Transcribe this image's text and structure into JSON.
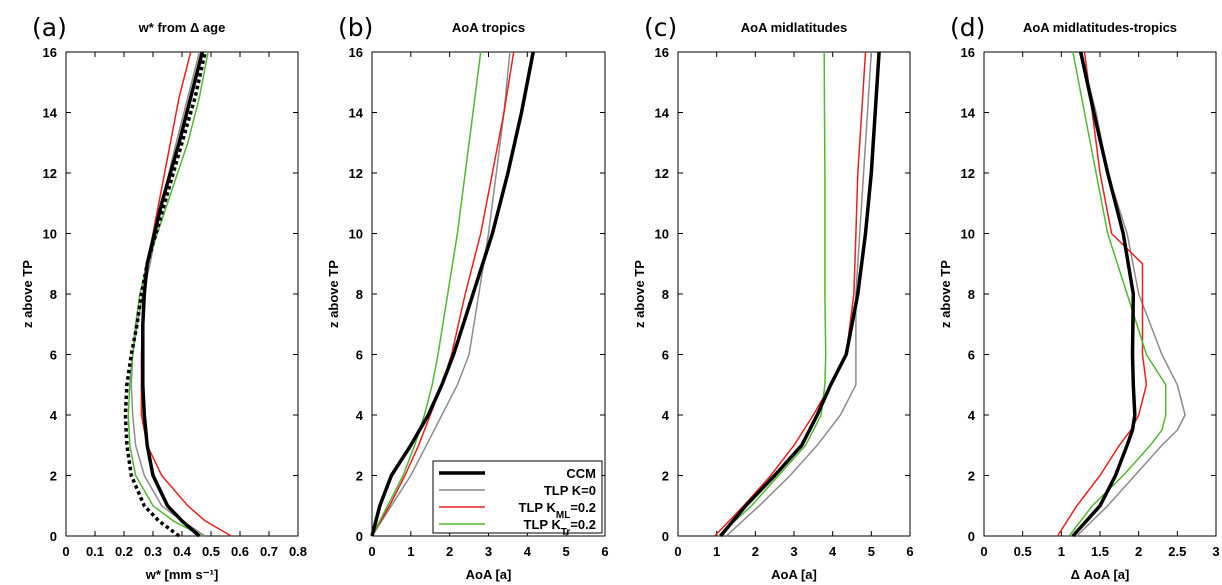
{
  "chart_data": [
    {
      "type": "line",
      "panel_label": "(a)",
      "title": "w* from Δ age",
      "xlabel": "w* [mm s⁻¹]",
      "ylabel": "z above TP",
      "xlim": [
        0,
        0.8
      ],
      "ylim": [
        0,
        16
      ],
      "xticks": [
        "0",
        "0.1",
        "0.2",
        "0.3",
        "0.4",
        "0.5",
        "0.6",
        "0.7",
        "0.8"
      ],
      "yticks": [
        "0",
        "2",
        "4",
        "6",
        "8",
        "10",
        "12",
        "14",
        "16"
      ],
      "series": [
        {
          "key": "grey",
          "color": "#8c8c8c",
          "style": "solid",
          "width": 1.5,
          "x": [
            0.48,
            0.4,
            0.33,
            0.27,
            0.24,
            0.23,
            0.225,
            0.23,
            0.245,
            0.265,
            0.29,
            0.33,
            0.38,
            0.42,
            0.46
          ],
          "y": [
            0,
            0.5,
            1,
            2,
            3,
            4,
            5,
            6,
            7,
            8,
            9,
            11,
            13,
            14.5,
            16
          ]
        },
        {
          "key": "red",
          "color": "#e8201e",
          "style": "solid",
          "width": 1.5,
          "x": [
            0.57,
            0.48,
            0.42,
            0.33,
            0.28,
            0.26,
            0.26,
            0.26,
            0.265,
            0.27,
            0.28,
            0.32,
            0.36,
            0.39,
            0.43
          ],
          "y": [
            0,
            0.5,
            1,
            2,
            3,
            4,
            5,
            6,
            7,
            8,
            9,
            11,
            13,
            14.5,
            16
          ]
        },
        {
          "key": "green",
          "color": "#52b732",
          "style": "solid",
          "width": 1.5,
          "x": [
            0.47,
            0.37,
            0.3,
            0.24,
            0.22,
            0.215,
            0.22,
            0.23,
            0.24,
            0.255,
            0.28,
            0.35,
            0.42,
            0.46,
            0.49
          ],
          "y": [
            0,
            0.5,
            1,
            2,
            3,
            4,
            5,
            6,
            7,
            8,
            9,
            11,
            13,
            14.5,
            16
          ]
        },
        {
          "key": "ccm",
          "color": "#000000",
          "style": "solid",
          "width": 3.5,
          "x": [
            0.46,
            0.4,
            0.35,
            0.3,
            0.28,
            0.27,
            0.265,
            0.265,
            0.265,
            0.27,
            0.28,
            0.33,
            0.39,
            0.43,
            0.47
          ],
          "y": [
            0,
            0.5,
            1,
            2,
            3,
            4,
            5,
            6,
            7,
            8,
            9,
            11,
            13,
            14.5,
            16
          ]
        },
        {
          "key": "dotted",
          "color": "#000000",
          "style": "dotted",
          "width": 3.5,
          "x": [
            0.39,
            0.32,
            0.27,
            0.225,
            0.21,
            0.205,
            0.21,
            0.225,
            0.245,
            0.26,
            0.28,
            0.34,
            0.4,
            0.445,
            0.48
          ],
          "y": [
            0,
            0.5,
            1,
            2,
            3,
            4,
            5,
            6,
            7,
            8,
            9,
            11,
            13,
            14.5,
            16
          ]
        }
      ]
    },
    {
      "type": "line",
      "panel_label": "(b)",
      "title": "AoA tropics",
      "xlabel": "AoA [a]",
      "ylabel": "z above TP",
      "xlim": [
        0,
        6
      ],
      "ylim": [
        0,
        16
      ],
      "xticks": [
        "0",
        "1",
        "2",
        "3",
        "4",
        "5",
        "6"
      ],
      "yticks": [
        "0",
        "2",
        "4",
        "6",
        "8",
        "10",
        "12",
        "14",
        "16"
      ],
      "legend": {
        "position": "bottom-right",
        "entries": [
          {
            "label": "CCM",
            "key": "ccm"
          },
          {
            "label": "TLP K=0",
            "key": "grey"
          },
          {
            "label": "TLP K",
            "sub": "ML",
            "suffix": "=0.2",
            "key": "red"
          },
          {
            "label": "TLP K",
            "sub": "Tr",
            "suffix": "=0.2",
            "key": "green"
          }
        ]
      },
      "series": [
        {
          "key": "grey",
          "color": "#8c8c8c",
          "style": "solid",
          "width": 1.5,
          "x": [
            0,
            0.5,
            1.0,
            1.4,
            1.8,
            2.2,
            2.5,
            2.75,
            3.0,
            3.2,
            3.4,
            3.55
          ],
          "y": [
            0,
            1,
            2,
            3,
            4,
            5,
            6,
            8,
            10,
            12,
            14,
            16
          ]
        },
        {
          "key": "red",
          "color": "#e8201e",
          "style": "solid",
          "width": 1.5,
          "x": [
            0,
            0.45,
            0.85,
            1.2,
            1.5,
            1.8,
            2.05,
            2.4,
            2.8,
            3.1,
            3.4,
            3.65
          ],
          "y": [
            0,
            1,
            2,
            3,
            4,
            5,
            6,
            8,
            10,
            12,
            14,
            16
          ]
        },
        {
          "key": "green",
          "color": "#52b732",
          "style": "solid",
          "width": 1.5,
          "x": [
            0,
            0.4,
            0.8,
            1.1,
            1.35,
            1.55,
            1.7,
            1.95,
            2.2,
            2.4,
            2.6,
            2.8
          ],
          "y": [
            0,
            1,
            2,
            3,
            4,
            5,
            6,
            8,
            10,
            12,
            14,
            16
          ]
        },
        {
          "key": "ccm",
          "color": "#000000",
          "style": "solid",
          "width": 3.5,
          "x": [
            0,
            0.2,
            0.5,
            1.0,
            1.45,
            1.8,
            2.1,
            2.6,
            3.1,
            3.5,
            3.85,
            4.15
          ],
          "y": [
            0,
            1,
            2,
            3,
            4,
            5,
            6,
            8,
            10,
            12,
            14,
            16
          ]
        }
      ]
    },
    {
      "type": "line",
      "panel_label": "(c)",
      "title": "AoA midlatitudes",
      "xlabel": "AoA [a]",
      "ylabel": "z above TP",
      "xlim": [
        0,
        6
      ],
      "ylim": [
        0,
        16
      ],
      "xticks": [
        "0",
        "1",
        "2",
        "3",
        "4",
        "5",
        "6"
      ],
      "yticks": [
        "0",
        "2",
        "4",
        "6",
        "8",
        "10",
        "12",
        "14",
        "16"
      ],
      "series": [
        {
          "key": "grey",
          "color": "#8c8c8c",
          "style": "solid",
          "width": 1.5,
          "x": [
            1.25,
            2.1,
            2.9,
            3.6,
            4.2,
            4.6,
            4.6,
            4.6,
            4.7,
            4.8,
            4.9,
            5.0
          ],
          "y": [
            0,
            1,
            2,
            3,
            4,
            5,
            6,
            8,
            10,
            12,
            14,
            16
          ]
        },
        {
          "key": "red",
          "color": "#e8201e",
          "style": "solid",
          "width": 1.5,
          "x": [
            0.95,
            1.7,
            2.4,
            3.0,
            3.5,
            3.95,
            4.35,
            4.55,
            4.6,
            4.65,
            4.75,
            4.85
          ],
          "y": [
            0,
            1,
            2,
            3,
            4,
            5,
            6,
            8,
            10,
            12,
            14,
            16
          ]
        },
        {
          "key": "green",
          "color": "#52b732",
          "style": "solid",
          "width": 1.5,
          "x": [
            1.05,
            1.9,
            2.6,
            3.3,
            3.7,
            3.8,
            3.82,
            3.8,
            3.8,
            3.8,
            3.79,
            3.78
          ],
          "y": [
            0,
            1,
            2,
            3,
            4,
            5,
            6,
            8,
            10,
            12,
            14,
            16
          ]
        },
        {
          "key": "ccm",
          "color": "#000000",
          "style": "solid",
          "width": 3.5,
          "x": [
            1.1,
            1.75,
            2.5,
            3.2,
            3.6,
            3.95,
            4.35,
            4.65,
            4.85,
            5.0,
            5.1,
            5.2
          ],
          "y": [
            0,
            1,
            2,
            3,
            4,
            5,
            6,
            8,
            10,
            12,
            14,
            16
          ]
        }
      ]
    },
    {
      "type": "line",
      "panel_label": "(d)",
      "title": "AoA midlatitudes-tropics",
      "xlabel": "Δ AoA [a]",
      "ylabel": "z above TP",
      "xlim": [
        0,
        3
      ],
      "ylim": [
        0,
        16
      ],
      "xticks": [
        "0",
        "0.5",
        "1",
        "1.5",
        "2",
        "2.5",
        "3"
      ],
      "yticks": [
        "0",
        "2",
        "4",
        "6",
        "8",
        "10",
        "12",
        "14",
        "16"
      ],
      "series": [
        {
          "key": "grey",
          "color": "#8c8c8c",
          "style": "solid",
          "width": 1.5,
          "x": [
            1.2,
            1.6,
            1.95,
            2.3,
            2.5,
            2.6,
            2.5,
            2.3,
            2.0,
            1.85,
            1.6,
            1.45,
            1.25
          ],
          "y": [
            0,
            1,
            2,
            3,
            3.5,
            4,
            5,
            6,
            8,
            10,
            12,
            14,
            16
          ]
        },
        {
          "key": "red",
          "color": "#e8201e",
          "style": "solid",
          "width": 1.5,
          "x": [
            0.95,
            1.2,
            1.5,
            1.75,
            1.9,
            2.0,
            2.1,
            2.05,
            2.05,
            1.65,
            1.5,
            1.4,
            1.3
          ],
          "y": [
            0,
            1,
            2,
            3,
            3.5,
            4,
            5,
            6,
            9,
            10,
            12,
            14,
            16
          ]
        },
        {
          "key": "green",
          "color": "#52b732",
          "style": "solid",
          "width": 1.5,
          "x": [
            1.1,
            1.4,
            1.8,
            2.15,
            2.3,
            2.35,
            2.35,
            2.1,
            1.85,
            1.6,
            1.45,
            1.3,
            1.15
          ],
          "y": [
            0,
            1,
            2,
            3,
            3.5,
            4,
            5,
            6,
            8,
            10,
            12,
            14,
            16
          ]
        },
        {
          "key": "ccm",
          "color": "#000000",
          "style": "solid",
          "width": 3.5,
          "x": [
            1.15,
            1.5,
            1.7,
            1.85,
            1.92,
            1.95,
            1.93,
            1.92,
            1.93,
            1.8,
            1.6,
            1.42,
            1.25
          ],
          "y": [
            0,
            1,
            2,
            3,
            3.5,
            4,
            5,
            6,
            8,
            10,
            12,
            14,
            16
          ]
        }
      ]
    }
  ]
}
